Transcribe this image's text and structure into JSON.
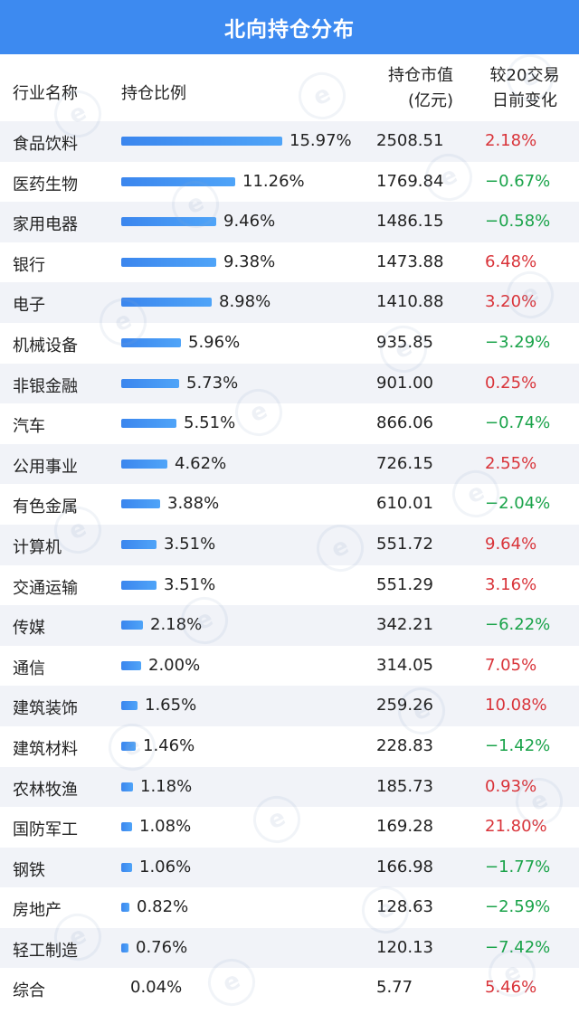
{
  "title": "北向持仓分布",
  "headers": {
    "industry": "行业名称",
    "ratio": "持仓比例",
    "value_line1": "持仓市值",
    "value_line2": "(亿元)",
    "change_line1": "较20交易",
    "change_line2": "日前变化"
  },
  "colors": {
    "header_bg": "#3d8af0",
    "bar": "#3b86ee",
    "up": "#d9343a",
    "down": "#1aa34a",
    "alt_row": "#f1f3f8"
  },
  "chart_data": {
    "type": "table",
    "title": "北向持仓分布",
    "columns": [
      "行业名称",
      "持仓比例",
      "持仓市值(亿元)",
      "较20交易日前变化"
    ],
    "rows": [
      {
        "industry": "食品饮料",
        "ratio": 15.97,
        "ratio_label": "15.97%",
        "value": "2508.51",
        "change": "2.18%",
        "direction": "up"
      },
      {
        "industry": "医药生物",
        "ratio": 11.26,
        "ratio_label": "11.26%",
        "value": "1769.84",
        "change": "−0.67%",
        "direction": "down"
      },
      {
        "industry": "家用电器",
        "ratio": 9.46,
        "ratio_label": "9.46%",
        "value": "1486.15",
        "change": "−0.58%",
        "direction": "down"
      },
      {
        "industry": "银行",
        "ratio": 9.38,
        "ratio_label": "9.38%",
        "value": "1473.88",
        "change": "6.48%",
        "direction": "up"
      },
      {
        "industry": "电子",
        "ratio": 8.98,
        "ratio_label": "8.98%",
        "value": "1410.88",
        "change": "3.20%",
        "direction": "up"
      },
      {
        "industry": "机械设备",
        "ratio": 5.96,
        "ratio_label": "5.96%",
        "value": "935.85",
        "change": "−3.29%",
        "direction": "down"
      },
      {
        "industry": "非银金融",
        "ratio": 5.73,
        "ratio_label": "5.73%",
        "value": "901.00",
        "change": "0.25%",
        "direction": "up"
      },
      {
        "industry": "汽车",
        "ratio": 5.51,
        "ratio_label": "5.51%",
        "value": "866.06",
        "change": "−0.74%",
        "direction": "down"
      },
      {
        "industry": "公用事业",
        "ratio": 4.62,
        "ratio_label": "4.62%",
        "value": "726.15",
        "change": "2.55%",
        "direction": "up"
      },
      {
        "industry": "有色金属",
        "ratio": 3.88,
        "ratio_label": "3.88%",
        "value": "610.01",
        "change": "−2.04%",
        "direction": "down"
      },
      {
        "industry": "计算机",
        "ratio": 3.51,
        "ratio_label": "3.51%",
        "value": "551.72",
        "change": "9.64%",
        "direction": "up"
      },
      {
        "industry": "交通运输",
        "ratio": 3.51,
        "ratio_label": "3.51%",
        "value": "551.29",
        "change": "3.16%",
        "direction": "up"
      },
      {
        "industry": "传媒",
        "ratio": 2.18,
        "ratio_label": "2.18%",
        "value": "342.21",
        "change": "−6.22%",
        "direction": "down"
      },
      {
        "industry": "通信",
        "ratio": 2.0,
        "ratio_label": "2.00%",
        "value": "314.05",
        "change": "7.05%",
        "direction": "up"
      },
      {
        "industry": "建筑装饰",
        "ratio": 1.65,
        "ratio_label": "1.65%",
        "value": "259.26",
        "change": "10.08%",
        "direction": "up"
      },
      {
        "industry": "建筑材料",
        "ratio": 1.46,
        "ratio_label": "1.46%",
        "value": "228.83",
        "change": "−1.42%",
        "direction": "down"
      },
      {
        "industry": "农林牧渔",
        "ratio": 1.18,
        "ratio_label": "1.18%",
        "value": "185.73",
        "change": "0.93%",
        "direction": "up"
      },
      {
        "industry": "国防军工",
        "ratio": 1.08,
        "ratio_label": "1.08%",
        "value": "169.28",
        "change": "21.80%",
        "direction": "up"
      },
      {
        "industry": "钢铁",
        "ratio": 1.06,
        "ratio_label": "1.06%",
        "value": "166.98",
        "change": "−1.77%",
        "direction": "down"
      },
      {
        "industry": "房地产",
        "ratio": 0.82,
        "ratio_label": "0.82%",
        "value": "128.63",
        "change": "−2.59%",
        "direction": "down"
      },
      {
        "industry": "轻工制造",
        "ratio": 0.76,
        "ratio_label": "0.76%",
        "value": "120.13",
        "change": "−7.42%",
        "direction": "down"
      },
      {
        "industry": "综合",
        "ratio": 0.04,
        "ratio_label": "0.04%",
        "value": "5.77",
        "change": "5.46%",
        "direction": "up"
      }
    ]
  }
}
